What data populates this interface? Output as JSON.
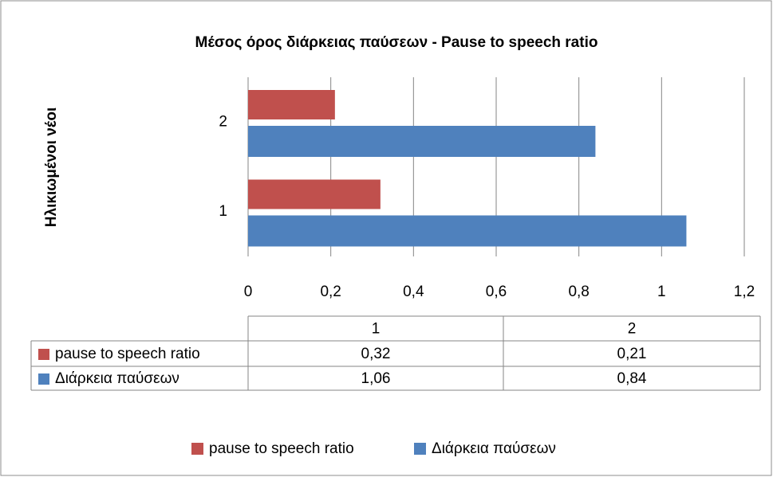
{
  "chart_data": {
    "type": "bar",
    "orientation": "horizontal",
    "title": "Μέσος όρος διάρκειας παύσεων - Pause to speech ratio",
    "y_label": "Ηλικιωμένοι νέοι",
    "categories": [
      "1",
      "2"
    ],
    "series": [
      {
        "name": "pause to speech ratio",
        "color": "#c0504d",
        "values": [
          0.32,
          0.21
        ],
        "value_labels": [
          "0,32",
          "0,21"
        ]
      },
      {
        "name": "Διάρκεια παύσεων",
        "color": "#4f81bd",
        "values": [
          1.06,
          0.84
        ],
        "value_labels": [
          "1,06",
          "0,84"
        ]
      }
    ],
    "xlim": [
      0,
      1.2
    ],
    "xticks": [
      0,
      {
        "value": 0.2,
        "label": "0,2"
      },
      {
        "value": 0.4,
        "label": "0,4"
      },
      {
        "value": 0.6,
        "label": "0,6"
      },
      {
        "value": 0.8,
        "label": "0,8"
      },
      1,
      {
        "value": 1.2,
        "label": "1,2"
      }
    ],
    "grid": true,
    "legend": "bottom",
    "data_table": true
  }
}
